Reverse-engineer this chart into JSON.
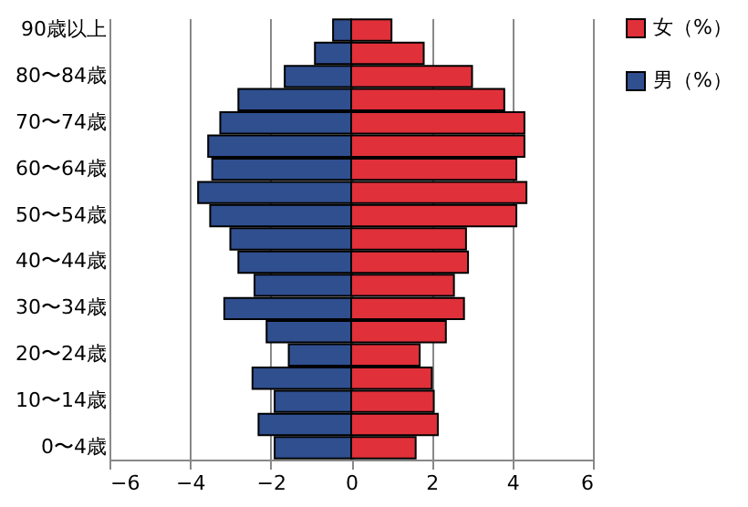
{
  "chart_data": {
    "type": "bar",
    "orientation": "horizontal",
    "stacked": true,
    "categories": [
      "90歳以上",
      null,
      "80〜84歳",
      null,
      "70〜74歳",
      null,
      "60〜64歳",
      null,
      "50〜54歳",
      null,
      "40〜44歳",
      null,
      "30〜34歳",
      null,
      "20〜24歳",
      null,
      "10〜14歳",
      null,
      "0〜4歳"
    ],
    "series": [
      {
        "name": "女（%）",
        "color": "#e0303a",
        "values": [
          1.0,
          1.8,
          3.0,
          3.8,
          4.3,
          4.3,
          4.1,
          4.35,
          4.1,
          2.85,
          2.9,
          2.55,
          2.8,
          2.35,
          1.7,
          2.0,
          2.05,
          2.15,
          1.6
        ]
      },
      {
        "name": "男（%）",
        "color": "#2f4f8f",
        "values": [
          -0.45,
          -0.9,
          -1.65,
          -2.8,
          -3.25,
          -3.55,
          -3.45,
          -3.8,
          -3.5,
          -3.0,
          -2.8,
          -2.4,
          -3.15,
          -2.1,
          -1.55,
          -2.45,
          -1.9,
          -2.3,
          -1.9
        ]
      }
    ],
    "xlim": [
      -6,
      6
    ],
    "xticks": [
      -6,
      -4,
      -2,
      0,
      2,
      4,
      6
    ],
    "grid": "x",
    "legend": "right"
  }
}
